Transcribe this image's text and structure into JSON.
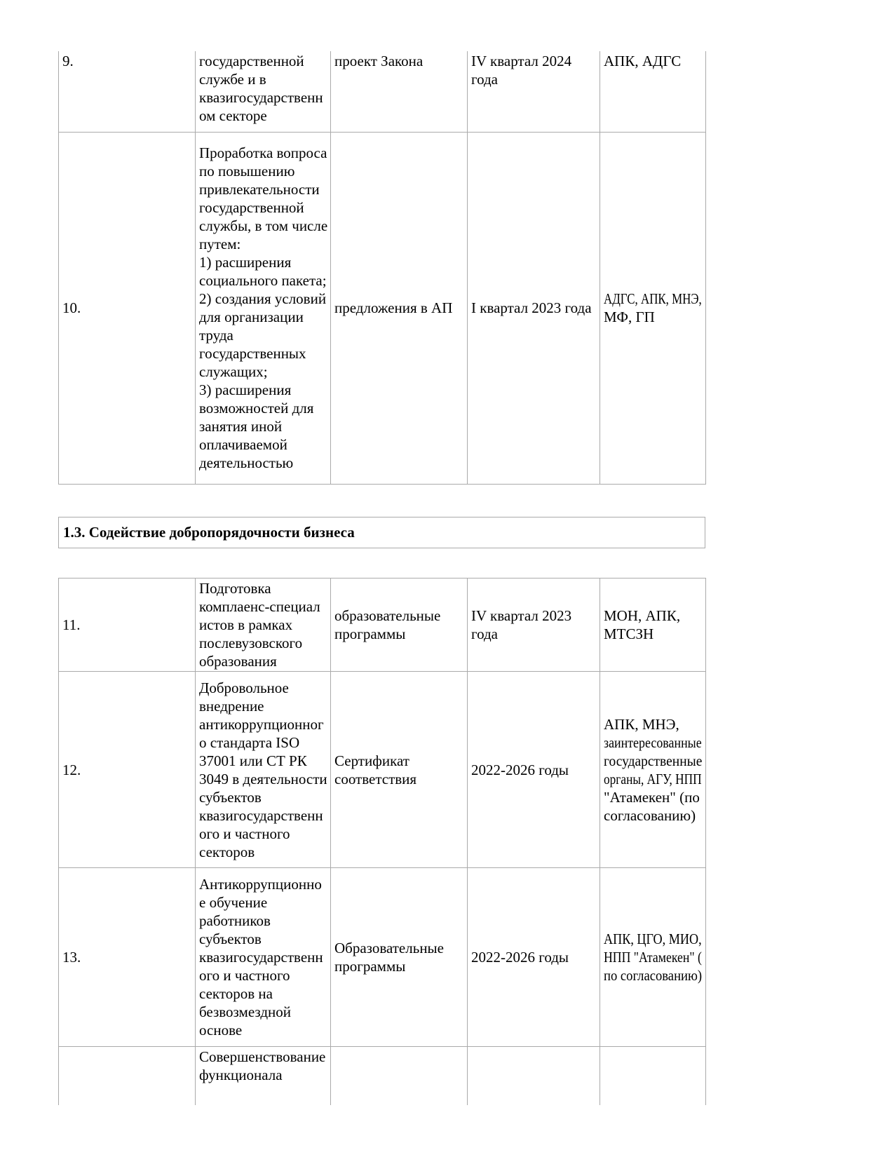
{
  "section_header": "1.3. Содействие добропорядочности бизнеса",
  "table_top": {
    "rows": [
      {
        "num": "9.",
        "measure": [
          "государственной\nслужбе и в\nквазигосударственн\nом секторе"
        ],
        "completion_form": [
          "проект Закона"
        ],
        "deadline": [
          "IV квартал 2024\nгода"
        ],
        "responsible": [
          "АПК, АДГС"
        ]
      },
      {
        "num": "10.",
        "measure": [
          "Проработка вопроса\nпо повышению\nпривлекательности\nгосударственной\nслужбы, в том числе\nпутем:",
          "1) расширения\nсоциального пакета;",
          "2) создания условий\nдля организации\nтруда\nгосударственных\nслужащих;",
          "3) расширения\nвозможностей для\nзанятия иной\nоплачиваемой\nдеятельностью"
        ],
        "completion_form": [
          "предложения в АП"
        ],
        "deadline": [
          "I квартал 2023 года"
        ],
        "responsible": [
          "АДГС, АПК, МНЭ,\nМФ, ГП"
        ]
      }
    ]
  },
  "table_bottom": {
    "rows": [
      {
        "num": "11.",
        "measure": [
          "Подготовка\nкомплаенс-специал\nистов в рамках\nпослевузовского\nобразования"
        ],
        "completion_form": [
          "образовательные\nпрограммы"
        ],
        "deadline": [
          "IV квартал 2023\nгода"
        ],
        "responsible": [
          "МОН, АПК,\nМТСЗН"
        ]
      },
      {
        "num": "12.",
        "measure": [
          "Добровольное\nвнедрение\nантикоррупционног\nо стандарта ISO\n37001 или СТ РК\n3049 в деятельности\nсубъектов\nквазигосударственн\nого и частного\nсекторов"
        ],
        "completion_form": [
          "Сертификат\nсоответствия"
        ],
        "deadline": [
          "2022-2026 годы"
        ],
        "responsible": [
          "АПК, МНЭ,\nзаинтересованные\nгосударственные\nорганы, АГУ, НПП\n\"Атамекен\" (по\nсогласованию)"
        ]
      },
      {
        "num": "13.",
        "measure": [
          "Антикоррупционно\nе обучение\nработников\nсубъектов\nквазигосударственн\nого и частного\nсекторов на\nбезвозмездной\nоснове"
        ],
        "completion_form": [
          "Образовательные\nпрограммы"
        ],
        "deadline": [
          "2022-2026 годы"
        ],
        "responsible": [
          "АПК, ЦГО, МИО,\nНПП \"Атамекен\" (\nпо согласованию)"
        ]
      },
      {
        "num": "",
        "measure": [
          "Совершенствование\nфункционала"
        ],
        "completion_form": [
          ""
        ],
        "deadline": [
          ""
        ],
        "responsible": [
          ""
        ]
      }
    ]
  }
}
